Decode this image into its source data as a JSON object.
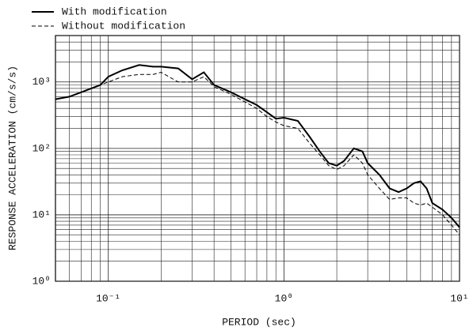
{
  "chart_data": {
    "type": "line",
    "xlabel": "PERIOD (sec)",
    "ylabel": "RESPONSE ACCELERATION (cm/s/s)",
    "xscale": "log",
    "yscale": "log",
    "grid": true,
    "legend": "upper left",
    "xlim": [
      0.05,
      10
    ],
    "ylim": [
      1,
      5000
    ],
    "xticks": [
      {
        "value": 0.1,
        "label": "10⁻¹"
      },
      {
        "value": 1,
        "label": "10⁰"
      },
      {
        "value": 10,
        "label": "10¹"
      }
    ],
    "yticks": [
      {
        "value": 1,
        "label": "10⁰"
      },
      {
        "value": 10,
        "label": "10¹"
      },
      {
        "value": 100,
        "label": "10²"
      },
      {
        "value": 1000,
        "label": "10³"
      }
    ],
    "xminorticks": [
      0.06,
      0.07,
      0.08,
      0.09,
      0.2,
      0.3,
      0.4,
      0.5,
      0.6,
      0.7,
      0.8,
      0.9,
      2,
      3,
      4,
      5,
      6,
      7,
      8,
      9
    ],
    "yminorticks": [
      2,
      3,
      4,
      5,
      6,
      7,
      8,
      9,
      20,
      30,
      40,
      50,
      60,
      70,
      80,
      90,
      200,
      300,
      400,
      500,
      600,
      700,
      800,
      900,
      2000,
      3000,
      4000,
      5000
    ],
    "x": [
      0.05,
      0.06,
      0.07,
      0.08,
      0.09,
      0.1,
      0.12,
      0.15,
      0.18,
      0.2,
      0.25,
      0.3,
      0.35,
      0.4,
      0.5,
      0.6,
      0.7,
      0.8,
      0.9,
      1.0,
      1.2,
      1.4,
      1.6,
      1.8,
      2.0,
      2.2,
      2.5,
      2.8,
      3.0,
      3.5,
      4.0,
      4.5,
      5,
      5.5,
      6,
      6.5,
      7,
      8,
      9,
      10
    ],
    "series": [
      {
        "name": "With modification",
        "color": "#000000",
        "style": "solid",
        "values": [
          550,
          600,
          700,
          800,
          900,
          1200,
          1500,
          1800,
          1700,
          1700,
          1600,
          1100,
          1400,
          900,
          700,
          550,
          450,
          350,
          280,
          290,
          260,
          150,
          90,
          60,
          55,
          65,
          100,
          90,
          60,
          40,
          25,
          22,
          25,
          30,
          32,
          25,
          15,
          12,
          9,
          6.5
        ]
      },
      {
        "name": "Without modification",
        "color": "#000000",
        "style": "dashed",
        "values": [
          550,
          600,
          700,
          800,
          900,
          1000,
          1200,
          1300,
          1300,
          1400,
          1000,
          1000,
          1200,
          850,
          650,
          500,
          400,
          300,
          250,
          220,
          200,
          120,
          80,
          55,
          48,
          55,
          80,
          60,
          40,
          25,
          17,
          18,
          18,
          15,
          14,
          15,
          13,
          10,
          7,
          5
        ]
      }
    ]
  }
}
